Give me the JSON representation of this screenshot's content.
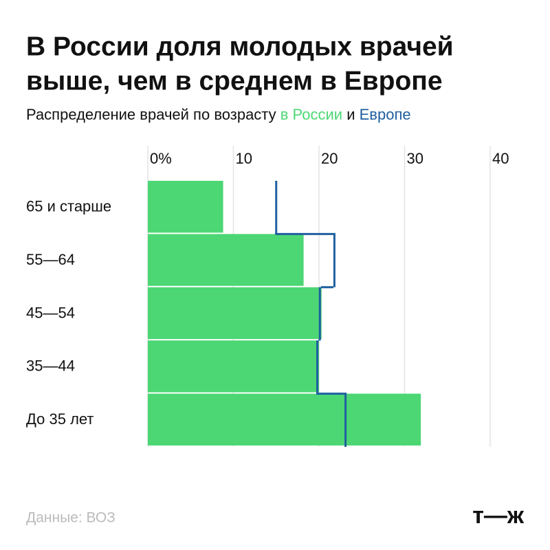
{
  "chart_data": {
    "type": "bar",
    "title": [
      "В России доля молодых врачей",
      "выше, чем в среднем в Европе"
    ],
    "subtitle": "Распределение врачей по возрасту",
    "subtitle_joiner": "и",
    "categories": [
      "65 и старше",
      "55—64",
      "45—54",
      "35—44",
      "До 35 лет"
    ],
    "series": [
      {
        "name": "в России",
        "color": "#4cd774",
        "values": [
          8.8,
          18.2,
          20.3,
          20.0,
          31.9
        ]
      },
      {
        "name": "Европе",
        "color": "#1f5fa0",
        "values": [
          15.0,
          21.8,
          20.1,
          19.8,
          23.1
        ]
      }
    ],
    "xlim": [
      0,
      40
    ],
    "xticks": [
      {
        "value": 0,
        "label": "0%"
      },
      10,
      20,
      30,
      40
    ],
    "grid": true,
    "source": "Данные: ВОЗ",
    "logo": "т—ж"
  }
}
